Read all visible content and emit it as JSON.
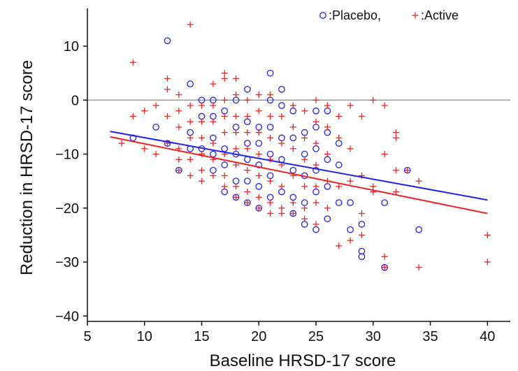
{
  "chart_data": {
    "type": "scatter",
    "title": "",
    "xlabel": "Baseline HRSD-17 score",
    "ylabel": "Reduction in HRSD-17 score",
    "xlim": [
      5,
      42
    ],
    "ylim": [
      -41,
      17
    ],
    "xticks": [
      5,
      10,
      15,
      20,
      25,
      30,
      35,
      40
    ],
    "yticks": [
      -40,
      -30,
      -20,
      -10,
      0,
      10
    ],
    "reference_line_y": 0,
    "legend_position": "top-right",
    "series": [
      {
        "name": "Placebo",
        "legend_label": ":Placebo,",
        "marker": "circle",
        "color": "#2222ee",
        "points": [
          [
            9,
            -7
          ],
          [
            11,
            -5
          ],
          [
            12,
            11
          ],
          [
            12,
            -8
          ],
          [
            13,
            -13
          ],
          [
            14,
            3
          ],
          [
            14,
            -6
          ],
          [
            14,
            -9
          ],
          [
            15,
            0
          ],
          [
            15,
            -3
          ],
          [
            15,
            -9
          ],
          [
            16,
            0
          ],
          [
            16,
            -3
          ],
          [
            16,
            -7
          ],
          [
            16,
            -10
          ],
          [
            16,
            -13
          ],
          [
            17,
            -2
          ],
          [
            17,
            -9
          ],
          [
            17,
            -12
          ],
          [
            17,
            -17
          ],
          [
            18,
            0
          ],
          [
            18,
            -5
          ],
          [
            18,
            -10
          ],
          [
            18,
            -15
          ],
          [
            18,
            -18
          ],
          [
            19,
            2
          ],
          [
            19,
            -4
          ],
          [
            19,
            -8
          ],
          [
            19,
            -11
          ],
          [
            19,
            -15
          ],
          [
            19,
            -19
          ],
          [
            20,
            -5
          ],
          [
            20,
            -8
          ],
          [
            20,
            -12
          ],
          [
            20,
            -16
          ],
          [
            20,
            -20
          ],
          [
            21,
            5
          ],
          [
            21,
            0
          ],
          [
            21,
            -5
          ],
          [
            21,
            -10
          ],
          [
            21,
            -14
          ],
          [
            21,
            -18
          ],
          [
            22,
            2
          ],
          [
            22,
            -1
          ],
          [
            22,
            -7
          ],
          [
            22,
            -11
          ],
          [
            22,
            -17
          ],
          [
            23,
            -2
          ],
          [
            23,
            -7
          ],
          [
            23,
            -13
          ],
          [
            23,
            -18
          ],
          [
            23,
            -21
          ],
          [
            24,
            -6
          ],
          [
            24,
            -10
          ],
          [
            24,
            -14
          ],
          [
            24,
            -19
          ],
          [
            24,
            -23
          ],
          [
            25,
            -2
          ],
          [
            25,
            -5
          ],
          [
            25,
            -9
          ],
          [
            25,
            -13
          ],
          [
            25,
            -17
          ],
          [
            25,
            -24
          ],
          [
            26,
            -2
          ],
          [
            26,
            -6
          ],
          [
            26,
            -11
          ],
          [
            26,
            -16
          ],
          [
            26,
            -22
          ],
          [
            27,
            -8
          ],
          [
            27,
            -12
          ],
          [
            27,
            -19
          ],
          [
            28,
            -19
          ],
          [
            28,
            -24
          ],
          [
            29,
            -23
          ],
          [
            29,
            -28
          ],
          [
            29,
            -29
          ],
          [
            31,
            -19
          ],
          [
            31,
            -31
          ],
          [
            33,
            -13
          ],
          [
            34,
            -24
          ]
        ]
      },
      {
        "name": "Active",
        "legend_label": ":Active",
        "marker": "plus",
        "color": "#ee2222",
        "points": [
          [
            8,
            -8
          ],
          [
            9,
            7
          ],
          [
            9,
            -3
          ],
          [
            10,
            -2
          ],
          [
            10,
            -9
          ],
          [
            11,
            -1
          ],
          [
            11,
            -10
          ],
          [
            12,
            4
          ],
          [
            12,
            2
          ],
          [
            12,
            -3
          ],
          [
            12,
            -8
          ],
          [
            13,
            1
          ],
          [
            13,
            -2
          ],
          [
            13,
            -5
          ],
          [
            13,
            -9
          ],
          [
            13,
            -11
          ],
          [
            13,
            -13
          ],
          [
            14,
            14
          ],
          [
            14,
            -1
          ],
          [
            14,
            -4
          ],
          [
            14,
            -7
          ],
          [
            14,
            -11
          ],
          [
            14,
            -14
          ],
          [
            15,
            -1
          ],
          [
            15,
            -4
          ],
          [
            15,
            -7
          ],
          [
            15,
            -10
          ],
          [
            15,
            -13
          ],
          [
            15,
            -15
          ],
          [
            16,
            3
          ],
          [
            16,
            -1
          ],
          [
            16,
            -4
          ],
          [
            16,
            -8
          ],
          [
            16,
            -11
          ],
          [
            16,
            -14
          ],
          [
            17,
            5
          ],
          [
            17,
            4
          ],
          [
            17,
            0
          ],
          [
            17,
            -3
          ],
          [
            17,
            -6
          ],
          [
            17,
            -10
          ],
          [
            17,
            -14
          ],
          [
            17,
            -16
          ],
          [
            18,
            4
          ],
          [
            18,
            1
          ],
          [
            18,
            -3
          ],
          [
            18,
            -6
          ],
          [
            18,
            -9
          ],
          [
            18,
            -12
          ],
          [
            18,
            -16
          ],
          [
            18,
            -18
          ],
          [
            19,
            0
          ],
          [
            19,
            -3
          ],
          [
            19,
            -6
          ],
          [
            19,
            -9
          ],
          [
            19,
            -13
          ],
          [
            19,
            -17
          ],
          [
            19,
            -19
          ],
          [
            20,
            1
          ],
          [
            20,
            -2
          ],
          [
            20,
            -6
          ],
          [
            20,
            -10
          ],
          [
            20,
            -14
          ],
          [
            20,
            -18
          ],
          [
            20,
            -20
          ],
          [
            21,
            1
          ],
          [
            21,
            -3
          ],
          [
            21,
            -7
          ],
          [
            21,
            -11
          ],
          [
            21,
            -15
          ],
          [
            21,
            -19
          ],
          [
            21,
            -21
          ],
          [
            22,
            -3
          ],
          [
            22,
            -8
          ],
          [
            22,
            -12
          ],
          [
            22,
            -16
          ],
          [
            22,
            -20
          ],
          [
            22,
            -21
          ],
          [
            23,
            -1
          ],
          [
            23,
            -5
          ],
          [
            23,
            -9
          ],
          [
            23,
            -14
          ],
          [
            23,
            -19
          ],
          [
            23,
            -21
          ],
          [
            24,
            -2
          ],
          [
            24,
            -7
          ],
          [
            24,
            -11
          ],
          [
            24,
            -16
          ],
          [
            24,
            -20
          ],
          [
            24,
            -22
          ],
          [
            25,
            0
          ],
          [
            25,
            -4
          ],
          [
            25,
            -8
          ],
          [
            25,
            -12
          ],
          [
            25,
            -16
          ],
          [
            25,
            -19
          ],
          [
            25,
            -23
          ],
          [
            26,
            -1
          ],
          [
            26,
            -5
          ],
          [
            26,
            -10
          ],
          [
            26,
            -15
          ],
          [
            26,
            -20
          ],
          [
            27,
            -3
          ],
          [
            27,
            -7
          ],
          [
            27,
            -16
          ],
          [
            27,
            -27
          ],
          [
            28,
            -1
          ],
          [
            28,
            -9
          ],
          [
            28,
            -15
          ],
          [
            28,
            -26
          ],
          [
            29,
            -3
          ],
          [
            29,
            -14
          ],
          [
            29,
            -21
          ],
          [
            29,
            -25
          ],
          [
            30,
            0
          ],
          [
            30,
            -16
          ],
          [
            30,
            -17
          ],
          [
            31,
            -1
          ],
          [
            31,
            -10
          ],
          [
            31,
            -29
          ],
          [
            31,
            -31
          ],
          [
            32,
            -6
          ],
          [
            32,
            -7
          ],
          [
            32,
            -13
          ],
          [
            32,
            -17
          ],
          [
            33,
            -13
          ],
          [
            34,
            -15
          ],
          [
            34,
            -31
          ],
          [
            40,
            -25
          ],
          [
            40,
            -30
          ]
        ]
      }
    ],
    "regression_lines": [
      {
        "name": "Placebo",
        "color": "#2222ee",
        "x": [
          7,
          40
        ],
        "y": [
          -5.8,
          -18.5
        ]
      },
      {
        "name": "Active",
        "color": "#ee2222",
        "x": [
          7,
          40
        ],
        "y": [
          -6.8,
          -21
        ]
      }
    ]
  }
}
